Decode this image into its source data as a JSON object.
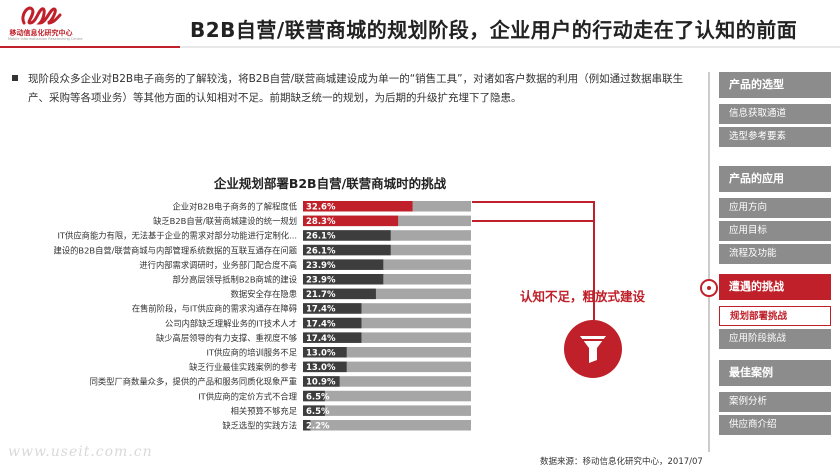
{
  "header": {
    "logo_text": "移动信息化研究中心",
    "logo_sub": "Mobile Informatization Researching Centre",
    "title": "B2B自营/联营商城的规划阶段，企业用户的行动走在了认知的前面"
  },
  "intro": {
    "text": "现阶段众多企业对B2B电子商务的了解较浅，将B2B自营/联营商城建设成为单一的“销售工具”，对诸如客户数据的利用（例如通过数据串联生产、采购等各项业务）等其他方面的认知相对不足。前期缺乏统一的规划，为后期的升级扩充埋下了隐患。"
  },
  "callout": {
    "text": "认知不足，粗放式建设"
  },
  "colors": {
    "accent": "#c0202a",
    "bar_dark": "#3d3d3d",
    "bar_track": "#a6a6a6",
    "sidebar_gray": "#8c8c8c"
  },
  "icons": {
    "funnel": "funnel-icon"
  },
  "chart_data": {
    "type": "bar",
    "orientation": "horizontal",
    "title": "企业规划部署B2B自营/联营商城时的挑战",
    "xlim": [
      0,
      100
    ],
    "categories": [
      "企业对B2B电子商务的了解程度低",
      "缺乏B2B自营/联营商城建设的统一规划",
      "IT供应商能力有限，无法基于企业的需求对部分功能进行定制化...",
      "建设的B2B自营/联营商城与内部管理系统数据的互联互通存在问题",
      "进行内部需求调研时，业务部门配合度不高",
      "部分高层领导抵制B2B商城的建设",
      "数据安全存在隐患",
      "在售前阶段，与IT供应商的需求沟通存在障碍",
      "公司内部缺乏理解业务的IT技术人才",
      "缺少高层领导的有力支撑、重视度不够",
      "IT供应商的培训服务不足",
      "缺乏行业最佳实践案例的参考",
      "同类型厂商数量众多，提供的产品和服务同质化现象严重",
      "IT供应商的定价方式不合理",
      "相关预算不够充足",
      "缺乏选型的实践方法"
    ],
    "values": [
      32.6,
      28.3,
      26.1,
      26.1,
      23.9,
      23.9,
      21.7,
      17.4,
      17.4,
      17.4,
      13.0,
      13.0,
      10.9,
      6.5,
      6.5,
      2.2
    ],
    "value_labels": [
      "32.6%",
      "28.3%",
      "26.1%",
      "26.1%",
      "23.9%",
      "23.9%",
      "21.7%",
      "17.4%",
      "17.4%",
      "17.4%",
      "13.0%",
      "13.0%",
      "10.9%",
      "6.5%",
      "6.5%",
      "2.2%"
    ],
    "highlight": [
      0,
      1
    ]
  },
  "sidebar": {
    "groups": [
      {
        "label": "产品的选型",
        "active": false,
        "items": [
          {
            "label": "信息获取通道",
            "active": false
          },
          {
            "label": "选型参考要素",
            "active": false
          }
        ]
      },
      {
        "label": "产品的应用",
        "active": false,
        "items": [
          {
            "label": "应用方向",
            "active": false
          },
          {
            "label": "应用目标",
            "active": false
          },
          {
            "label": "流程及功能",
            "active": false
          }
        ]
      },
      {
        "label": "遭遇的挑战",
        "active": true,
        "items": [
          {
            "label": "规划部署挑战",
            "active": true
          },
          {
            "label": "应用阶段挑战",
            "active": false
          }
        ]
      },
      {
        "label": "最佳案例",
        "active": false,
        "items": [
          {
            "label": "案例分析",
            "active": false
          },
          {
            "label": "供应商介绍",
            "active": false
          }
        ]
      }
    ]
  },
  "watermark": "www.useit.com.cn",
  "source": "数据来源：移动信息化研究中心，2017/07"
}
